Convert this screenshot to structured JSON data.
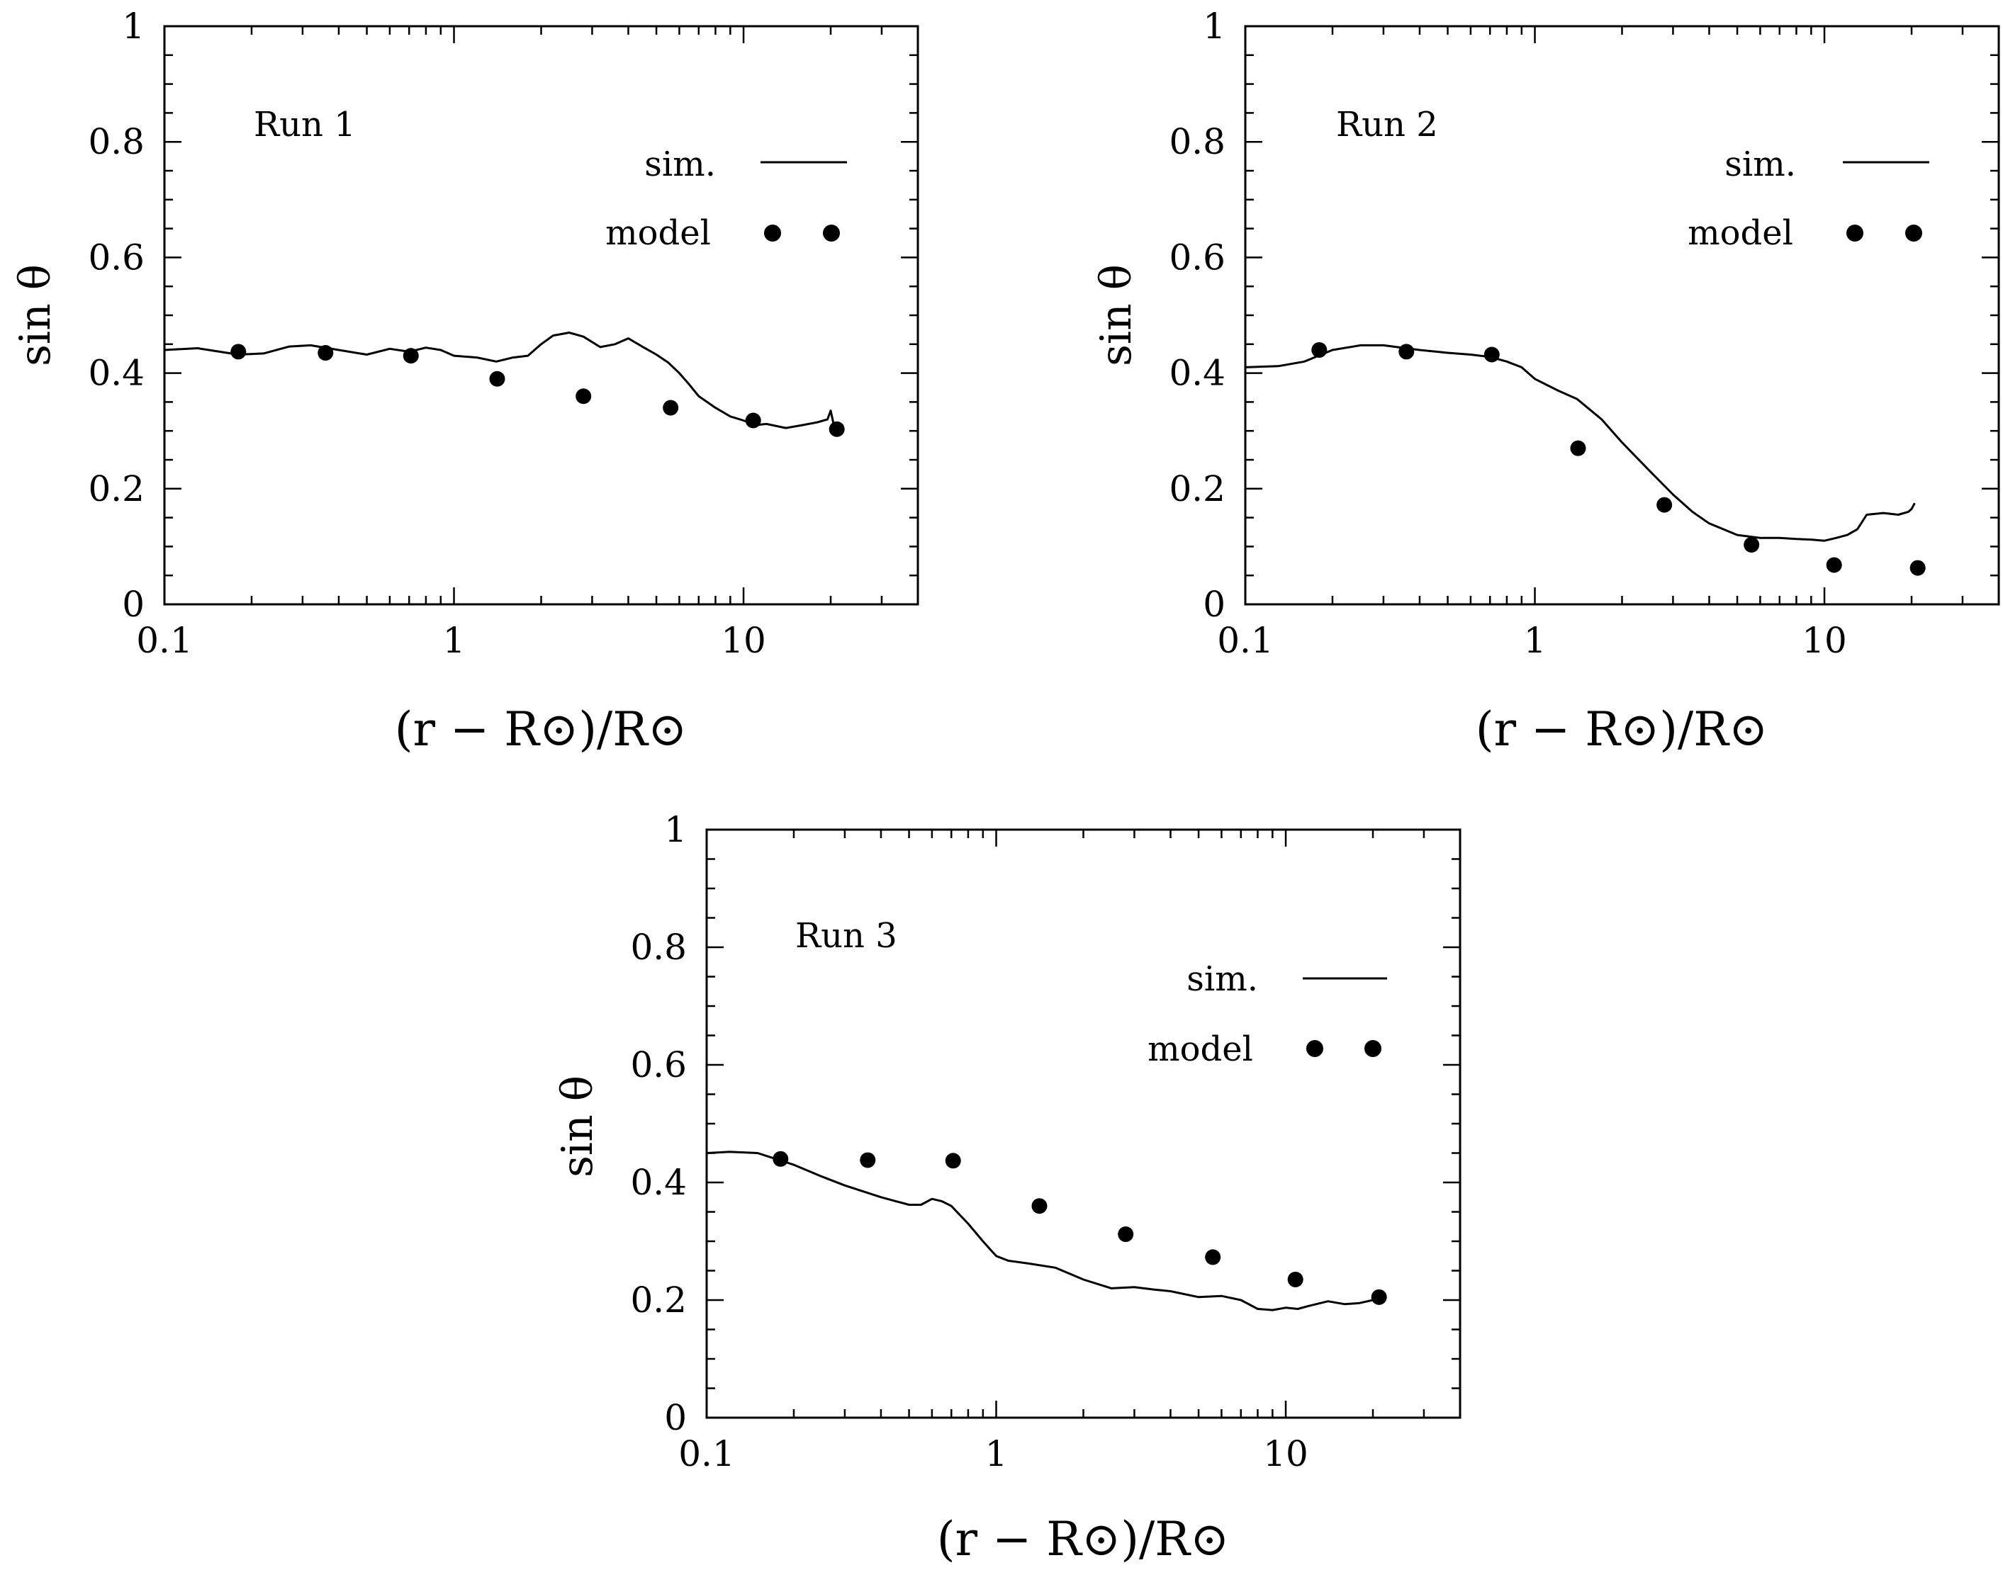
{
  "chart_data": [
    {
      "type": "line",
      "title": "Run 1",
      "xlabel": "(r − R⊙)/R⊙",
      "ylabel": "sin θ",
      "xscale": "log",
      "xlim": [
        0.1,
        40
      ],
      "ylim": [
        0,
        1
      ],
      "xticks": [
        {
          "v": 0.1,
          "label": "0.1"
        },
        {
          "v": 1,
          "label": "1"
        },
        {
          "v": 10,
          "label": "10"
        }
      ],
      "yticks": [
        {
          "v": 0,
          "label": "0"
        },
        {
          "v": 0.2,
          "label": "0.2"
        },
        {
          "v": 0.4,
          "label": "0.4"
        },
        {
          "v": 0.6,
          "label": "0.6"
        },
        {
          "v": 0.8,
          "label": "0.8"
        },
        {
          "v": 1,
          "label": "1"
        }
      ],
      "legend": {
        "sim_label": "sim.",
        "model_label": "model",
        "position": "top-right"
      },
      "series": [
        {
          "name": "sim.",
          "kind": "line",
          "x": [
            0.1,
            0.13,
            0.18,
            0.22,
            0.27,
            0.32,
            0.4,
            0.5,
            0.6,
            0.7,
            0.8,
            0.9,
            1.0,
            1.2,
            1.4,
            1.6,
            1.8,
            2.0,
            2.2,
            2.5,
            2.8,
            3.2,
            3.6,
            4.0,
            4.5,
            5.0,
            5.5,
            6.0,
            6.5,
            7.0,
            8.0,
            9.0,
            10.0,
            11.0,
            12.0,
            14.0,
            16.0,
            18.0,
            19.5,
            20.0,
            20.5
          ],
          "y": [
            0.44,
            0.443,
            0.432,
            0.434,
            0.446,
            0.448,
            0.44,
            0.432,
            0.442,
            0.437,
            0.444,
            0.44,
            0.43,
            0.427,
            0.42,
            0.427,
            0.43,
            0.45,
            0.465,
            0.47,
            0.463,
            0.445,
            0.45,
            0.46,
            0.445,
            0.432,
            0.418,
            0.4,
            0.38,
            0.36,
            0.34,
            0.325,
            0.318,
            0.31,
            0.312,
            0.305,
            0.31,
            0.315,
            0.32,
            0.335,
            0.31
          ]
        },
        {
          "name": "model",
          "kind": "scatter",
          "x": [
            0.18,
            0.36,
            0.71,
            1.41,
            2.8,
            5.6,
            10.8,
            21.0
          ],
          "y": [
            0.437,
            0.435,
            0.43,
            0.39,
            0.36,
            0.34,
            0.318,
            0.303
          ]
        }
      ]
    },
    {
      "type": "line",
      "title": "Run 2",
      "xlabel": "(r − R⊙)/R⊙",
      "ylabel": "sin θ",
      "xscale": "log",
      "xlim": [
        0.1,
        40
      ],
      "ylim": [
        0,
        1
      ],
      "xticks": [
        {
          "v": 0.1,
          "label": "0.1"
        },
        {
          "v": 1,
          "label": "1"
        },
        {
          "v": 10,
          "label": "10"
        }
      ],
      "yticks": [
        {
          "v": 0,
          "label": "0"
        },
        {
          "v": 0.2,
          "label": "0.2"
        },
        {
          "v": 0.4,
          "label": "0.4"
        },
        {
          "v": 0.6,
          "label": "0.6"
        },
        {
          "v": 0.8,
          "label": "0.8"
        },
        {
          "v": 1,
          "label": "1"
        }
      ],
      "legend": {
        "sim_label": "sim.",
        "model_label": "model",
        "position": "top-right"
      },
      "series": [
        {
          "name": "sim.",
          "kind": "line",
          "x": [
            0.1,
            0.13,
            0.16,
            0.2,
            0.25,
            0.3,
            0.4,
            0.5,
            0.6,
            0.7,
            0.8,
            0.9,
            1.0,
            1.2,
            1.4,
            1.7,
            2.0,
            2.5,
            3.0,
            3.5,
            4.0,
            5.0,
            6.0,
            7.0,
            8.0,
            9.0,
            10.0,
            11.0,
            12.0,
            13.0,
            14.0,
            16.0,
            18.0,
            19.5,
            20.0,
            20.5
          ],
          "y": [
            0.41,
            0.412,
            0.42,
            0.44,
            0.448,
            0.448,
            0.44,
            0.435,
            0.432,
            0.428,
            0.42,
            0.41,
            0.39,
            0.37,
            0.355,
            0.32,
            0.28,
            0.23,
            0.19,
            0.16,
            0.14,
            0.12,
            0.115,
            0.115,
            0.113,
            0.112,
            0.11,
            0.115,
            0.12,
            0.13,
            0.155,
            0.158,
            0.155,
            0.16,
            0.165,
            0.175
          ]
        },
        {
          "name": "model",
          "kind": "scatter",
          "x": [
            0.18,
            0.36,
            0.71,
            1.41,
            2.8,
            5.6,
            10.8,
            21.0
          ],
          "y": [
            0.44,
            0.437,
            0.432,
            0.27,
            0.172,
            0.103,
            0.068,
            0.063
          ]
        }
      ]
    },
    {
      "type": "line",
      "title": "Run 3",
      "xlabel": "(r − R⊙)/R⊙",
      "ylabel": "sin θ",
      "xscale": "log",
      "xlim": [
        0.1,
        40
      ],
      "ylim": [
        0,
        1
      ],
      "xticks": [
        {
          "v": 0.1,
          "label": "0.1"
        },
        {
          "v": 1,
          "label": "1"
        },
        {
          "v": 10,
          "label": "10"
        }
      ],
      "yticks": [
        {
          "v": 0,
          "label": "0"
        },
        {
          "v": 0.2,
          "label": "0.2"
        },
        {
          "v": 0.4,
          "label": "0.4"
        },
        {
          "v": 0.6,
          "label": "0.6"
        },
        {
          "v": 0.8,
          "label": "0.8"
        },
        {
          "v": 1,
          "label": "1"
        }
      ],
      "legend": {
        "sim_label": "sim.",
        "model_label": "model",
        "position": "top-right"
      },
      "series": [
        {
          "name": "sim.",
          "kind": "line",
          "x": [
            0.1,
            0.12,
            0.15,
            0.2,
            0.25,
            0.3,
            0.4,
            0.5,
            0.55,
            0.6,
            0.65,
            0.7,
            0.8,
            0.9,
            1.0,
            1.1,
            1.3,
            1.6,
            2.0,
            2.5,
            3.0,
            3.5,
            4.0,
            5.0,
            6.0,
            7.0,
            8.0,
            9.0,
            10.0,
            11.0,
            12.0,
            14.0,
            16.0,
            18.0,
            20.0,
            21.0
          ],
          "y": [
            0.45,
            0.452,
            0.45,
            0.43,
            0.41,
            0.395,
            0.375,
            0.362,
            0.362,
            0.372,
            0.368,
            0.36,
            0.33,
            0.3,
            0.275,
            0.267,
            0.262,
            0.255,
            0.235,
            0.22,
            0.222,
            0.218,
            0.215,
            0.205,
            0.207,
            0.2,
            0.185,
            0.183,
            0.187,
            0.185,
            0.19,
            0.198,
            0.193,
            0.195,
            0.2,
            0.205
          ]
        },
        {
          "name": "model",
          "kind": "scatter",
          "x": [
            0.18,
            0.36,
            0.71,
            1.41,
            2.8,
            5.6,
            10.8,
            21.0
          ],
          "y": [
            0.44,
            0.438,
            0.437,
            0.36,
            0.312,
            0.273,
            0.235,
            0.205
          ]
        }
      ]
    }
  ]
}
